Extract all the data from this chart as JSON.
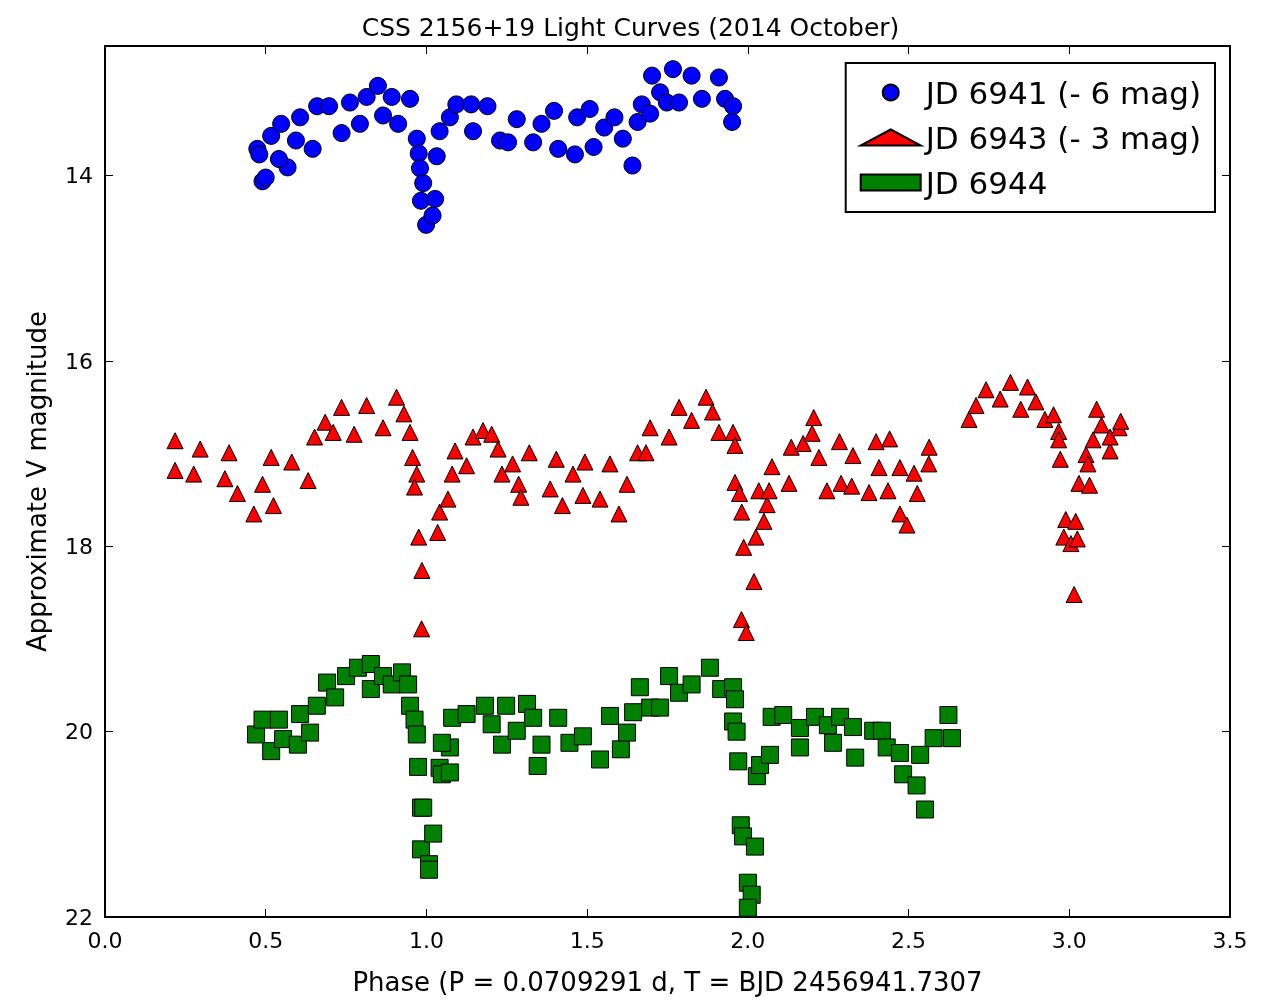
{
  "chart_data": {
    "type": "scatter",
    "title": "CSS 2156+19 Light Curves (2014 October)",
    "xlabel": "Phase (P = 0.0709291 d, T = BJD 2456941.7307",
    "ylabel": "Approximate V magnitude",
    "xlim": [
      0,
      3.5
    ],
    "ylim": [
      22,
      12.6
    ],
    "xticks": [
      {
        "value": 0,
        "label": "0.0"
      },
      {
        "value": 0.5,
        "label": "0.5"
      },
      {
        "value": 1,
        "label": "1.0"
      },
      {
        "value": 1.5,
        "label": "1.5"
      },
      {
        "value": 2,
        "label": "2.0"
      },
      {
        "value": 2.5,
        "label": "2.5"
      },
      {
        "value": 3,
        "label": "3.0"
      },
      {
        "value": 3.5,
        "label": "3.5"
      }
    ],
    "yticks": [
      14,
      16,
      18,
      20,
      22
    ],
    "grid": false,
    "legend": "top right",
    "series": [
      {
        "name": "JD 6941 (- 6 mag)",
        "color": "#0000ff",
        "marker": "circle",
        "x": [
          0.474,
          0.49,
          0.5,
          0.48,
          0.517,
          0.548,
          0.568,
          0.541,
          0.594,
          0.607,
          0.646,
          0.66,
          0.697,
          0.736,
          0.762,
          0.793,
          0.814,
          0.849,
          0.865,
          0.892,
          0.912,
          0.949,
          0.97,
          0.976,
          0.98,
          0.99,
          0.983,
          0.999,
          1.019,
          1.027,
          1.032,
          1.041,
          1.073,
          1.093,
          1.139,
          1.145,
          1.19,
          1.229,
          1.254,
          1.281,
          1.332,
          1.358,
          1.397,
          1.41,
          1.462,
          1.469,
          1.508,
          1.52,
          1.553,
          1.585,
          1.611,
          1.641,
          1.657,
          1.67,
          1.696,
          1.702,
          1.727,
          1.748,
          1.767,
          1.786,
          1.825,
          1.857,
          1.91,
          1.929,
          1.954,
          1.951
        ],
        "values": [
          13.71,
          14.06,
          14.02,
          13.77,
          13.57,
          13.44,
          13.91,
          13.82,
          13.62,
          13.37,
          13.71,
          13.25,
          13.25,
          13.54,
          13.21,
          13.44,
          13.15,
          13.03,
          13.35,
          13.15,
          13.44,
          13.17,
          13.6,
          13.76,
          13.92,
          14.08,
          14.27,
          14.53,
          14.43,
          14.25,
          13.79,
          13.52,
          13.37,
          13.23,
          13.23,
          13.52,
          13.25,
          13.62,
          13.64,
          13.39,
          13.64,
          13.44,
          13.3,
          13.71,
          13.77,
          13.37,
          13.28,
          13.69,
          13.48,
          13.37,
          13.6,
          13.89,
          13.42,
          13.23,
          13.33,
          12.92,
          13.1,
          13.21,
          12.85,
          13.21,
          12.92,
          13.17,
          12.94,
          13.17,
          13.25,
          13.42
        ]
      },
      {
        "name": "JD 6943 (- 3 mag)",
        "color": "#ff0000",
        "marker": "triangle",
        "x": [
          0.218,
          0.218,
          0.276,
          0.296,
          0.373,
          0.386,
          0.412,
          0.463,
          0.49,
          0.517,
          0.524,
          0.581,
          0.632,
          0.652,
          0.685,
          0.71,
          0.736,
          0.775,
          0.814,
          0.865,
          0.907,
          0.93,
          0.949,
          0.957,
          0.97,
          0.963,
          0.976,
          0.986,
          0.985,
          1.035,
          1.041,
          1.067,
          1.08,
          1.089,
          1.125,
          1.145,
          1.176,
          1.203,
          1.223,
          1.235,
          1.268,
          1.287,
          1.294,
          1.32,
          1.385,
          1.404,
          1.423,
          1.456,
          1.493,
          1.487,
          1.54,
          1.571,
          1.599,
          1.624,
          1.657,
          1.683,
          1.696,
          1.755,
          1.786,
          1.825,
          1.87,
          1.89,
          1.91,
          1.954,
          1.96,
          1.96,
          1.974,
          1.981,
          1.987,
          2.019,
          1.98,
          1.995,
          2.025,
          2.05,
          2.06,
          2.034,
          2.066,
          2.075,
          2.128,
          2.135,
          2.172,
          2.205,
          2.2,
          2.221,
          2.246,
          2.285,
          2.29,
          2.327,
          2.323,
          2.377,
          2.399,
          2.408,
          2.441,
          2.436,
          2.473,
          2.495,
          2.473,
          2.527,
          2.517,
          2.564,
          2.563,
          2.688,
          2.71,
          2.741,
          2.785,
          2.817,
          2.849,
          2.87,
          2.896,
          2.924,
          2.951,
          2.967,
          2.967,
          2.972,
          2.989,
          3.02,
          2.983,
          3.005,
          3.025,
          3.015,
          3.03,
          3.063,
          3.052,
          3.058,
          3.074,
          3.085,
          3.1,
          3.127,
          3.127,
          3.155,
          3.16
        ],
        "values": [
          16.86,
          17.18,
          17.22,
          16.95,
          17.27,
          16.99,
          17.43,
          17.65,
          17.33,
          17.04,
          17.56,
          17.09,
          17.29,
          16.82,
          16.66,
          16.77,
          16.5,
          16.79,
          16.48,
          16.72,
          16.39,
          16.57,
          16.77,
          17.04,
          17.22,
          17.36,
          17.9,
          18.26,
          18.89,
          17.85,
          17.63,
          17.49,
          17.22,
          16.97,
          17.13,
          16.82,
          16.75,
          16.79,
          16.95,
          17.22,
          17.11,
          17.33,
          17.47,
          16.99,
          17.38,
          17.06,
          17.56,
          17.22,
          17.09,
          17.45,
          17.49,
          17.11,
          17.65,
          17.33,
          16.99,
          16.99,
          16.72,
          16.82,
          16.5,
          16.64,
          16.39,
          16.55,
          16.77,
          16.77,
          16.91,
          17.31,
          17.43,
          17.63,
          18.01,
          18.38,
          18.79,
          18.93,
          17.9,
          17.73,
          17.55,
          17.4,
          17.4,
          17.14,
          17.32,
          16.93,
          16.89,
          16.61,
          16.78,
          17.04,
          17.4,
          16.87,
          17.32,
          17.02,
          17.35,
          17.42,
          16.87,
          17.15,
          16.84,
          17.4,
          17.65,
          17.77,
          17.15,
          17.43,
          17.21,
          16.93,
          17.11,
          16.63,
          16.48,
          16.31,
          16.41,
          16.23,
          16.52,
          16.28,
          16.44,
          16.63,
          16.58,
          16.76,
          16.85,
          17.06,
          17.71,
          17.73,
          17.9,
          17.97,
          17.92,
          18.52,
          17.32,
          17.34,
          17.01,
          17.11,
          16.85,
          16.52,
          16.69,
          16.97,
          16.82,
          16.72,
          16.65
        ]
      },
      {
        "name": "JD 6944",
        "color": "#008000",
        "marker": "square",
        "x": [
          0.47,
          0.49,
          0.517,
          0.541,
          0.554,
          0.6,
          0.607,
          0.638,
          0.659,
          0.691,
          0.716,
          0.75,
          0.787,
          0.827,
          0.827,
          0.865,
          0.892,
          0.924,
          0.943,
          0.949,
          0.963,
          0.97,
          0.974,
          0.983,
          0.99,
          0.983,
          1.021,
          1.008,
          1.008,
          1.041,
          1.048,
          1.073,
          1.073,
          1.048,
          1.08,
          1.125,
          1.182,
          1.203,
          1.235,
          1.248,
          1.281,
          1.313,
          1.332,
          1.346,
          1.358,
          1.41,
          1.445,
          1.487,
          1.54,
          1.571,
          1.605,
          1.624,
          1.643,
          1.664,
          1.696,
          1.727,
          1.755,
          1.786,
          1.825,
          1.882,
          1.917,
          1.954,
          1.96,
          1.954,
          1.965,
          1.97,
          1.978,
          1.985,
          2.022,
          2.0,
          2.012,
          2.0,
          2.028,
          2.038,
          2.069,
          2.074,
          2.11,
          2.162,
          2.162,
          2.209,
          2.249,
          2.265,
          2.287,
          2.334,
          2.327,
          2.39,
          2.417,
          2.432,
          2.473,
          2.483,
          2.525,
          2.551,
          2.536,
          2.578,
          2.624,
          2.635
        ],
        "values": [
          20.03,
          19.87,
          20.21,
          19.87,
          20.08,
          20.14,
          19.81,
          20.01,
          19.72,
          19.47,
          19.63,
          19.4,
          19.31,
          19.27,
          19.54,
          19.4,
          19.49,
          19.36,
          19.49,
          19.72,
          19.87,
          20.03,
          20.38,
          20.82,
          20.82,
          21.27,
          21.1,
          21.43,
          21.49,
          20.39,
          20.46,
          20.44,
          20.17,
          20.12,
          19.85,
          19.81,
          19.72,
          19.92,
          20.14,
          19.72,
          19.99,
          19.7,
          19.85,
          20.37,
          20.14,
          19.85,
          20.12,
          20.05,
          20.3,
          19.83,
          20.19,
          20.01,
          19.79,
          19.52,
          19.74,
          19.74,
          19.4,
          19.58,
          19.49,
          19.31,
          19.54,
          19.52,
          19.65,
          19.89,
          20.0,
          20.32,
          21.01,
          21.13,
          21.24,
          21.63,
          21.76,
          21.9,
          20.48,
          20.36,
          20.25,
          19.84,
          19.82,
          20.17,
          19.96,
          19.84,
          19.93,
          20.12,
          19.84,
          20.28,
          19.95,
          19.99,
          19.99,
          20.17,
          20.23,
          20.46,
          20.58,
          20.84,
          20.25,
          20.07,
          19.82,
          20.07
        ]
      }
    ]
  }
}
